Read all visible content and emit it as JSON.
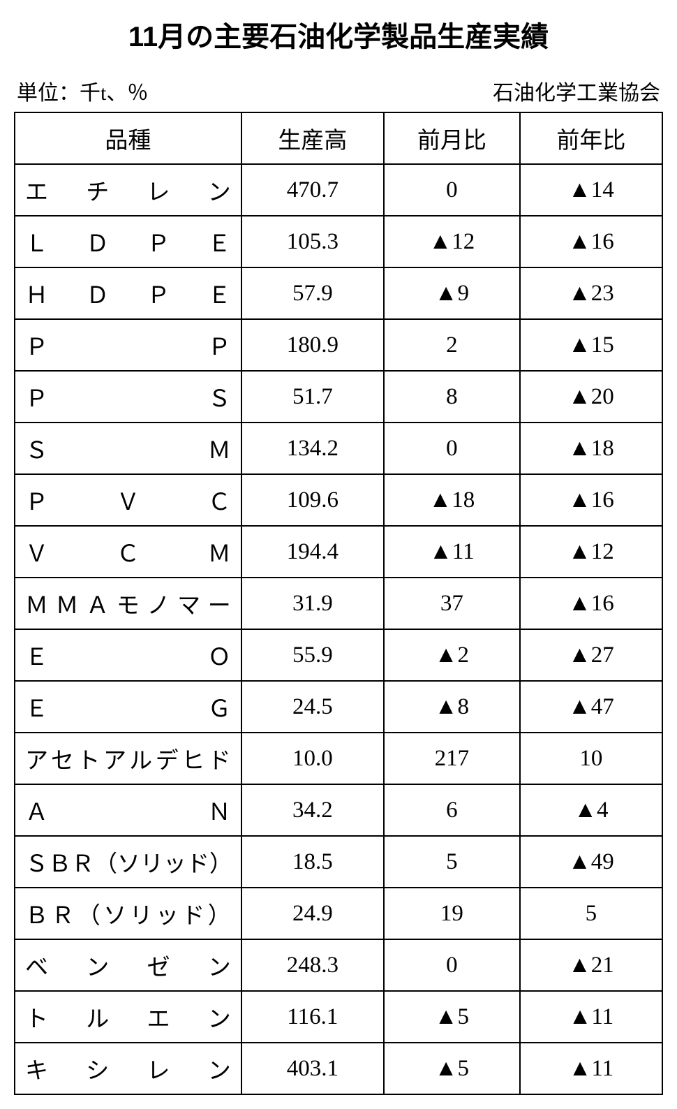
{
  "title": "11月の主要石油化学製品生産実績",
  "unit_label": "単位：千t、％",
  "source_label": "石油化学工業協会",
  "table": {
    "columns": [
      "品種",
      "生産高",
      "前月比",
      "前年比"
    ],
    "column_widths": [
      "35%",
      "22%",
      "21%",
      "22%"
    ],
    "cell_align": [
      "justify",
      "center",
      "center",
      "center"
    ],
    "border_color": "#000000",
    "text_color": "#000000",
    "background_color": "#ffffff",
    "negative_prefix": "▲",
    "rows": [
      {
        "name": "エチレン",
        "production": "470.7",
        "mom": "0",
        "yoy": "▲14"
      },
      {
        "name": "ＬＤＰＥ",
        "production": "105.3",
        "mom": "▲12",
        "yoy": "▲16"
      },
      {
        "name": "ＨＤＰＥ",
        "production": "57.9",
        "mom": "▲9",
        "yoy": "▲23"
      },
      {
        "name": "ＰＰ",
        "production": "180.9",
        "mom": "2",
        "yoy": "▲15"
      },
      {
        "name": "ＰＳ",
        "production": "51.7",
        "mom": "8",
        "yoy": "▲20"
      },
      {
        "name": "ＳＭ",
        "production": "134.2",
        "mom": "0",
        "yoy": "▲18"
      },
      {
        "name": "ＰＶＣ",
        "production": "109.6",
        "mom": "▲18",
        "yoy": "▲16"
      },
      {
        "name": "ＶＣＭ",
        "production": "194.4",
        "mom": "▲11",
        "yoy": "▲12"
      },
      {
        "name": "ＭＭＡモノマー",
        "production": "31.9",
        "mom": "37",
        "yoy": "▲16"
      },
      {
        "name": "ＥＯ",
        "production": "55.9",
        "mom": "▲2",
        "yoy": "▲27"
      },
      {
        "name": "ＥＧ",
        "production": "24.5",
        "mom": "▲8",
        "yoy": "▲47"
      },
      {
        "name": "アセトアルデヒド",
        "production": "10.0",
        "mom": "217",
        "yoy": "10"
      },
      {
        "name": "ＡＮ",
        "production": "34.2",
        "mom": "6",
        "yoy": "▲4"
      },
      {
        "name": "ＳＢＲ（ソリッド）",
        "production": "18.5",
        "mom": "5",
        "yoy": "▲49"
      },
      {
        "name": "ＢＲ（ソリッド）",
        "production": "24.9",
        "mom": "19",
        "yoy": "5"
      },
      {
        "name": "ベンゼン",
        "production": "248.3",
        "mom": "0",
        "yoy": "▲21"
      },
      {
        "name": "トルエン",
        "production": "116.1",
        "mom": "▲5",
        "yoy": "▲11"
      },
      {
        "name": "キシレン",
        "production": "403.1",
        "mom": "▲5",
        "yoy": "▲11"
      }
    ]
  },
  "typography": {
    "title_font": "sans-serif",
    "title_fontsize_pt": 30,
    "title_fontweight": "bold",
    "body_font": "serif",
    "body_fontsize_pt": 25,
    "subheader_fontsize_pt": 22
  }
}
